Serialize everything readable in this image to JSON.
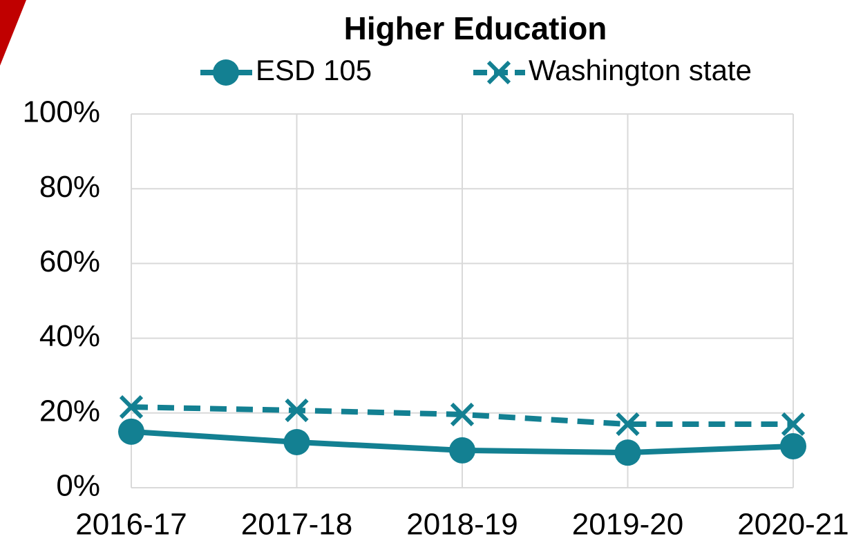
{
  "chart_data": {
    "type": "line",
    "title": "Higher Education",
    "categories": [
      "2016-17",
      "2017-18",
      "2018-19",
      "2019-20",
      "2020-21"
    ],
    "series": [
      {
        "name": "ESD 105",
        "color": "#138092",
        "marker": "circle",
        "dash": "solid",
        "values": [
          15.0,
          12.2,
          10.0,
          9.4,
          11.1
        ]
      },
      {
        "name": "Washington state",
        "color": "#138092",
        "marker": "x",
        "dash": "dashed",
        "values": [
          21.6,
          20.7,
          19.6,
          17.0,
          17.0
        ]
      }
    ],
    "ylim": [
      0,
      100
    ],
    "yticks": [
      {
        "value": 0,
        "label": "0%"
      },
      {
        "value": 20,
        "label": "20%"
      },
      {
        "value": 40,
        "label": "40%"
      },
      {
        "value": 60,
        "label": "60%"
      },
      {
        "value": 80,
        "label": "80%"
      },
      {
        "value": 100,
        "label": "100%"
      }
    ],
    "grid": true,
    "legend": "top"
  }
}
